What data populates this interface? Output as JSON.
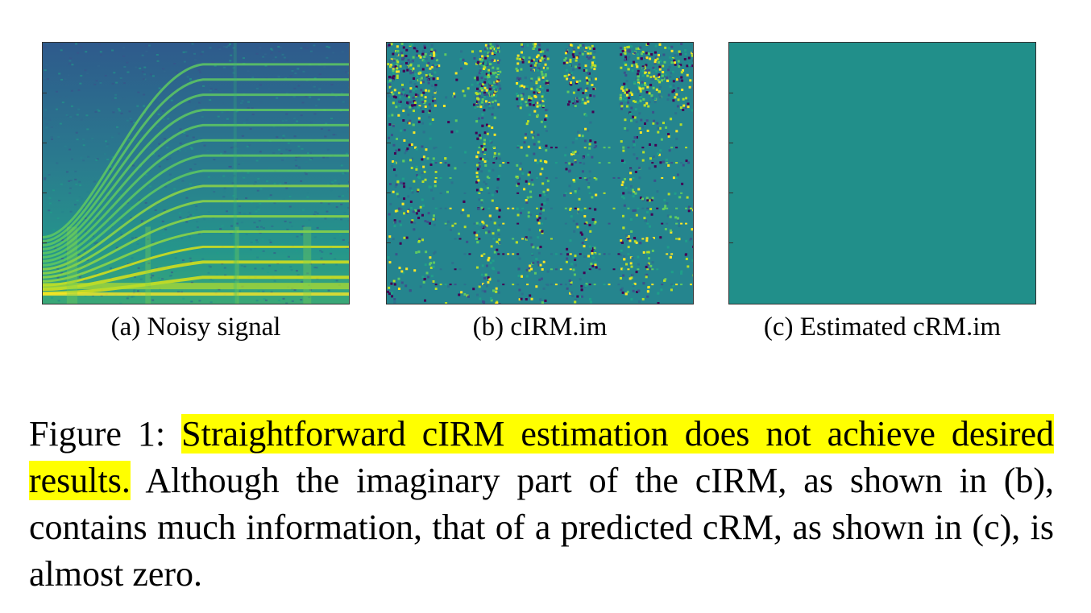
{
  "figure": {
    "panels": [
      {
        "id": "a",
        "label": "(a) Noisy signal",
        "image": "spectrogram-noisy-signal"
      },
      {
        "id": "b",
        "label": "(b) cIRM.im",
        "image": "cirm-imaginary-part-map"
      },
      {
        "id": "c",
        "label": "(c) Estimated cRM.im",
        "image": "estimated-crm-imaginary-part-map"
      }
    ],
    "colors": {
      "uniform_teal": "#218f8a",
      "spectrogram_dark": "#2f5f8d",
      "spectrogram_bright": "#fde725"
    },
    "caption": {
      "label": "Figure 1: ",
      "highlighted": "Straightforward cIRM estimation does not achieve desired results.",
      "rest": " Although the imaginary part of the cIRM, as shown in (b), contains much information, that of a predicted cRM, as shown in (c), is almost zero."
    }
  }
}
